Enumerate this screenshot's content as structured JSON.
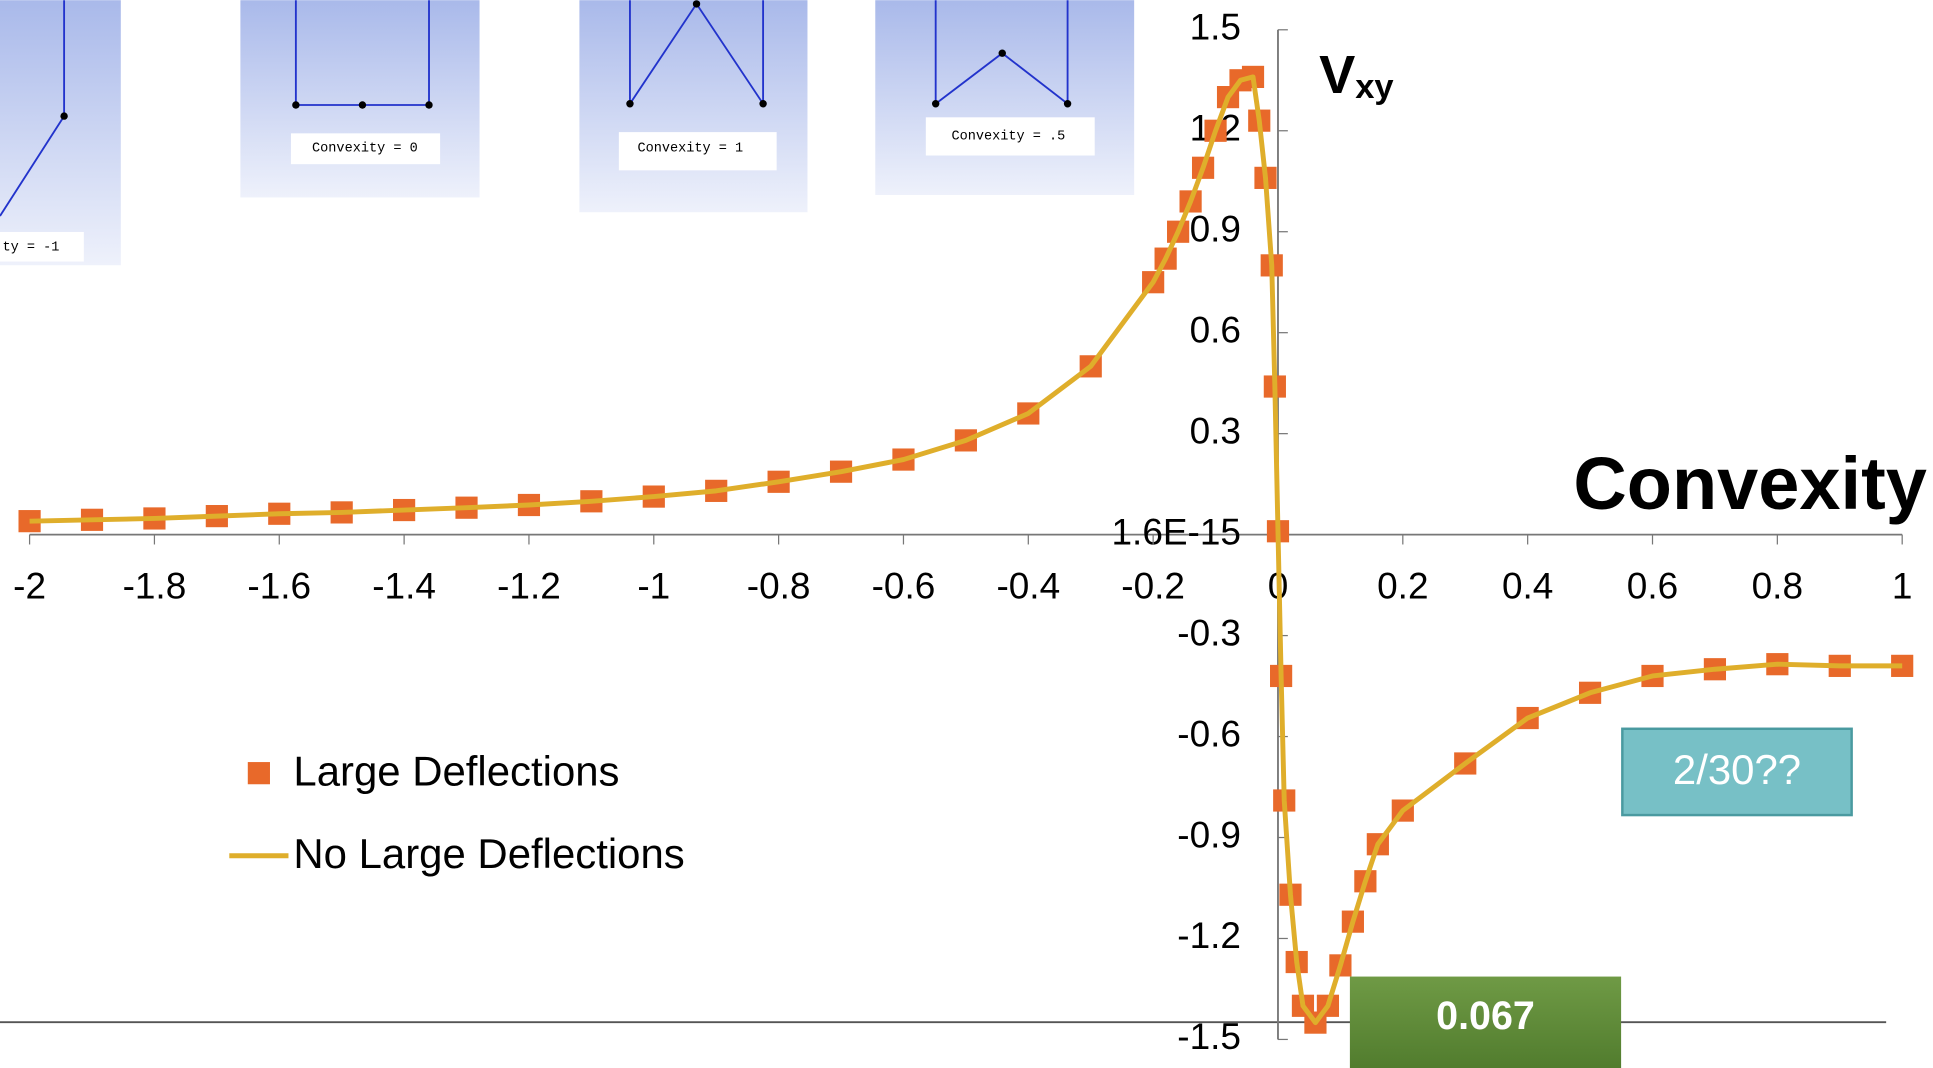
{
  "chart_data": {
    "type": "scatter-line",
    "ylabel_main": "V",
    "ylabel_sub": "xy",
    "xlabel": "Convexity",
    "x": [
      -2,
      -1.9,
      -1.8,
      -1.7,
      -1.6,
      -1.5,
      -1.4,
      -1.3,
      -1.2,
      -1.1,
      -1,
      -0.9,
      -0.8,
      -0.7,
      -0.6,
      -0.5,
      -0.4,
      -0.3,
      -0.2,
      -0.18,
      -0.16,
      -0.14,
      -0.12,
      -0.1,
      -0.08,
      -0.06,
      -0.04,
      -0.03,
      -0.02,
      -0.01,
      -0.005,
      0,
      0.005,
      0.01,
      0.02,
      0.03,
      0.04,
      0.06,
      0.08,
      0.1,
      0.12,
      0.14,
      0.16,
      0.2,
      0.3,
      0.4,
      0.5,
      0.6,
      0.7,
      0.8,
      0.9,
      1
    ],
    "series": [
      {
        "name": "Large Deflections",
        "color": "#e8692a",
        "marker": "square",
        "values": [
          0.04,
          0.044,
          0.048,
          0.055,
          0.062,
          0.066,
          0.073,
          0.08,
          0.088,
          0.099,
          0.113,
          0.13,
          0.157,
          0.187,
          0.223,
          0.28,
          0.36,
          0.5,
          0.75,
          0.82,
          0.9,
          0.99,
          1.09,
          1.2,
          1.3,
          1.35,
          1.36,
          1.23,
          1.06,
          0.8,
          0.44,
          0.01,
          -0.42,
          -0.79,
          -1.07,
          -1.27,
          -1.4,
          -1.45,
          -1.4,
          -1.28,
          -1.15,
          -1.03,
          -0.92,
          -0.82,
          -0.68,
          -0.545,
          -0.47,
          -0.42,
          -0.4,
          -0.385,
          -0.39,
          -0.39
        ]
      },
      {
        "name": "No Large Deflections",
        "color": "#dfae2b",
        "marker": "line",
        "values": [
          0.04,
          0.044,
          0.048,
          0.055,
          0.062,
          0.066,
          0.073,
          0.08,
          0.088,
          0.099,
          0.113,
          0.13,
          0.157,
          0.187,
          0.223,
          0.28,
          0.36,
          0.5,
          0.75,
          0.82,
          0.9,
          0.99,
          1.09,
          1.2,
          1.3,
          1.35,
          1.36,
          1.23,
          1.06,
          0.8,
          0.44,
          0.01,
          -0.42,
          -0.79,
          -1.07,
          -1.27,
          -1.4,
          -1.45,
          -1.4,
          -1.28,
          -1.15,
          -1.03,
          -0.92,
          -0.82,
          -0.68,
          -0.545,
          -0.47,
          -0.42,
          -0.4,
          -0.385,
          -0.39,
          -0.39
        ]
      }
    ],
    "xlim": [
      -2,
      1
    ],
    "xticks": [
      -2,
      -1.8,
      -1.6,
      -1.4,
      -1.2,
      -1,
      -0.8,
      -0.6,
      -0.4,
      -0.2,
      0,
      0.2,
      0.4,
      0.6,
      0.8,
      1
    ],
    "ylim": [
      -1.5,
      1.5
    ],
    "yticks": [
      -1.5,
      -1.2,
      -0.9,
      -0.6,
      -0.3,
      {
        "value": 1.6e-15,
        "label": "1.6E-15"
      },
      0.3,
      0.6,
      0.9,
      1.2,
      1.5
    ],
    "legend": "left",
    "annotations": [
      "2/30??",
      "0.067"
    ],
    "insets": [
      "ty = -1",
      "Convexity = 0",
      "Convexity = 1",
      "Convexity = .5"
    ]
  }
}
